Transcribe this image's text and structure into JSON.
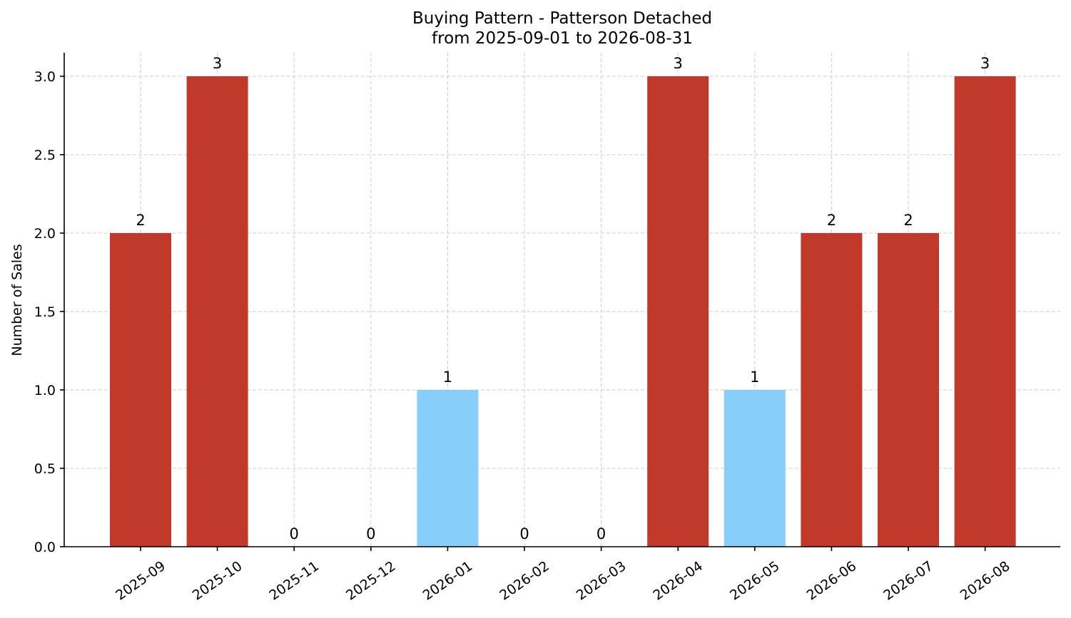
{
  "chart_data": {
    "type": "bar",
    "title": "Buying Pattern - Patterson Detached",
    "subtitle": "from 2025-09-01 to 2026-08-31",
    "xlabel": "",
    "ylabel": "Number of Sales",
    "categories": [
      "2025-09",
      "2025-10",
      "2025-11",
      "2025-12",
      "2026-01",
      "2026-02",
      "2026-03",
      "2026-04",
      "2026-05",
      "2026-06",
      "2026-07",
      "2026-08"
    ],
    "values": [
      2,
      3,
      0,
      0,
      1,
      0,
      0,
      3,
      1,
      2,
      2,
      3
    ],
    "bar_labels": [
      "2",
      "3",
      "0",
      "0",
      "1",
      "0",
      "0",
      "3",
      "1",
      "2",
      "2",
      "3"
    ],
    "bar_colors": [
      "#c0392b",
      "#c0392b",
      "#c0392b",
      "#c0392b",
      "#87cefa",
      "#c0392b",
      "#c0392b",
      "#c0392b",
      "#87cefa",
      "#c0392b",
      "#c0392b",
      "#c0392b"
    ],
    "ylim": [
      0,
      3.15
    ],
    "yticks": [
      0,
      0.5,
      1,
      1.5,
      2,
      2.5,
      3
    ],
    "ytick_labels": [
      "0.0",
      "0.5",
      "1.0",
      "1.5",
      "2.0",
      "2.5",
      "3.0"
    ],
    "grid": true,
    "legend": "none"
  }
}
